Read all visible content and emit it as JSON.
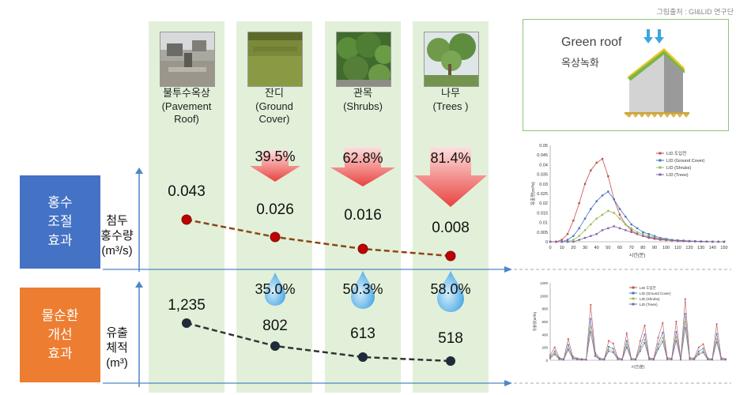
{
  "source": "그림출처 : GI&LID 연구단",
  "columns": [
    {
      "label_ko": "불투수옥상",
      "label_en_1": "(Pavement",
      "label_en_2": "Roof)",
      "photo": "pavement-roof-photo"
    },
    {
      "label_ko": "잔디",
      "label_en_1": "(Ground",
      "label_en_2": "Cover)",
      "photo": "ground-cover-photo"
    },
    {
      "label_ko": "관목",
      "label_en_1": "(Shrubs)",
      "label_en_2": "",
      "photo": "shrubs-photo"
    },
    {
      "label_ko": "나무",
      "label_en_1": "(Trees )",
      "label_en_2": "",
      "photo": "trees-photo"
    }
  ],
  "flood": {
    "title": "홍수\n조절\n효과",
    "unit_1": "첨두",
    "unit_2": "홍수량",
    "unit_3": "(m³/s)",
    "values": [
      "0.043",
      "0.026",
      "0.016",
      "0.008"
    ],
    "reductions": [
      "39.5%",
      "62.8%",
      "81.4%"
    ],
    "color": "#4472c4"
  },
  "water": {
    "title": "물순환\n개선\n효과",
    "unit_1": "유출",
    "unit_2": "체적",
    "unit_3": "(m³)",
    "values": [
      "1,235",
      "802",
      "613",
      "518"
    ],
    "reductions": [
      "35.0%",
      "50.3%",
      "58.0%"
    ],
    "color": "#ed7d31"
  },
  "green_roof": {
    "title_en": "Green roof",
    "title_ko": "옥상녹화"
  },
  "chart_data": [
    {
      "type": "line",
      "x": [
        0,
        5,
        10,
        15,
        20,
        25,
        30,
        35,
        40,
        45,
        50,
        55,
        60,
        65,
        70,
        75,
        80,
        85,
        90,
        95,
        100,
        105,
        110,
        115,
        120,
        125,
        130,
        135,
        140,
        145,
        150
      ],
      "xlabel": "시간(분)",
      "ylabel": "유출량(m³/s)",
      "ylim": [
        0,
        0.05
      ],
      "yticks": [
        "0",
        "0.005",
        "0.01",
        "0.015",
        "0.02",
        "0.025",
        "0.03",
        "0.035",
        "0.04",
        "0.045",
        "0.05"
      ],
      "xticks": [
        "0",
        "10",
        "20",
        "30",
        "40",
        "50",
        "60",
        "70",
        "80",
        "90",
        "100",
        "110",
        "120",
        "130",
        "140",
        "150"
      ],
      "legend": "top-right",
      "series": [
        {
          "name": "LID 도입전",
          "color": "#c0504d",
          "values": [
            0,
            0,
            0.001,
            0.004,
            0.011,
            0.02,
            0.03,
            0.037,
            0.041,
            0.043,
            0.034,
            0.022,
            0.014,
            0.009,
            0.006,
            0.004,
            0.003,
            0.002,
            0.0015,
            0.001,
            0.0008,
            0.0006,
            0.0004,
            0.0003,
            0.0002,
            0.0002,
            0.0001,
            0.0001,
            0,
            0,
            0
          ]
        },
        {
          "name": "LID (Ground Cover)",
          "color": "#4472c4",
          "values": [
            0,
            0,
            0,
            0.001,
            0.003,
            0.007,
            0.012,
            0.017,
            0.021,
            0.024,
            0.026,
            0.022,
            0.017,
            0.013,
            0.009,
            0.007,
            0.005,
            0.004,
            0.003,
            0.002,
            0.0015,
            0.001,
            0.0008,
            0.0006,
            0.0004,
            0.0003,
            0.0002,
            0.0001,
            0.0001,
            0,
            0
          ]
        },
        {
          "name": "LID (Shrubs)",
          "color": "#9bbb59",
          "values": [
            0,
            0,
            0,
            0,
            0.001,
            0.003,
            0.006,
            0.009,
            0.012,
            0.014,
            0.016,
            0.015,
            0.012,
            0.009,
            0.007,
            0.005,
            0.004,
            0.003,
            0.0022,
            0.0016,
            0.0012,
            0.0008,
            0.0006,
            0.0004,
            0.0003,
            0.0002,
            0.0001,
            0.0001,
            0,
            0,
            0
          ]
        },
        {
          "name": "LID (Trees)",
          "color": "#8064a2",
          "values": [
            0,
            0,
            0,
            0,
            0,
            0.001,
            0.002,
            0.003,
            0.004,
            0.006,
            0.007,
            0.008,
            0.007,
            0.006,
            0.005,
            0.004,
            0.003,
            0.0024,
            0.0018,
            0.0013,
            0.001,
            0.0007,
            0.0005,
            0.0004,
            0.0003,
            0.0002,
            0.0001,
            0.0001,
            0,
            0,
            0
          ]
        }
      ]
    },
    {
      "type": "line",
      "xlabel": "시간(분)",
      "ylabel": "유출량(m³/h)",
      "ylim": [
        0,
        1200
      ],
      "yticks": [
        "0",
        "200",
        "400",
        "600",
        "800",
        "1000",
        "1200"
      ],
      "legend": "top-left",
      "series": [
        {
          "name": "LID 도입전",
          "color": "#c0504d",
          "values": [
            80,
            200,
            40,
            20,
            330,
            60,
            30,
            20,
            15,
            860,
            120,
            30,
            20,
            300,
            260,
            40,
            20,
            420,
            30,
            20,
            300,
            540,
            40,
            25,
            350,
            580,
            40,
            30,
            600,
            20,
            950,
            40,
            30,
            200,
            250,
            30,
            20,
            560,
            40,
            20
          ]
        },
        {
          "name": "LID (Ground Cover)",
          "color": "#4472c4",
          "values": [
            50,
            140,
            25,
            15,
            240,
            40,
            20,
            15,
            10,
            640,
            90,
            20,
            15,
            210,
            180,
            25,
            15,
            300,
            20,
            15,
            210,
            400,
            25,
            15,
            250,
            430,
            25,
            20,
            440,
            15,
            720,
            25,
            20,
            140,
            180,
            20,
            15,
            410,
            25,
            15
          ]
        },
        {
          "name": "LID (Shrubs)",
          "color": "#9bbb59",
          "values": [
            40,
            110,
            20,
            10,
            190,
            30,
            15,
            10,
            8,
            520,
            70,
            15,
            10,
            170,
            140,
            20,
            10,
            240,
            15,
            10,
            170,
            320,
            20,
            10,
            200,
            350,
            20,
            15,
            360,
            10,
            600,
            20,
            15,
            110,
            140,
            15,
            10,
            330,
            20,
            10
          ]
        },
        {
          "name": "LID (Trees)",
          "color": "#8064a2",
          "values": [
            30,
            90,
            15,
            8,
            160,
            25,
            12,
            8,
            6,
            440,
            60,
            12,
            8,
            140,
            120,
            15,
            8,
            200,
            12,
            8,
            140,
            270,
            15,
            8,
            170,
            290,
            15,
            12,
            300,
            8,
            500,
            15,
            12,
            90,
            120,
            12,
            8,
            280,
            15,
            8
          ]
        }
      ]
    }
  ]
}
